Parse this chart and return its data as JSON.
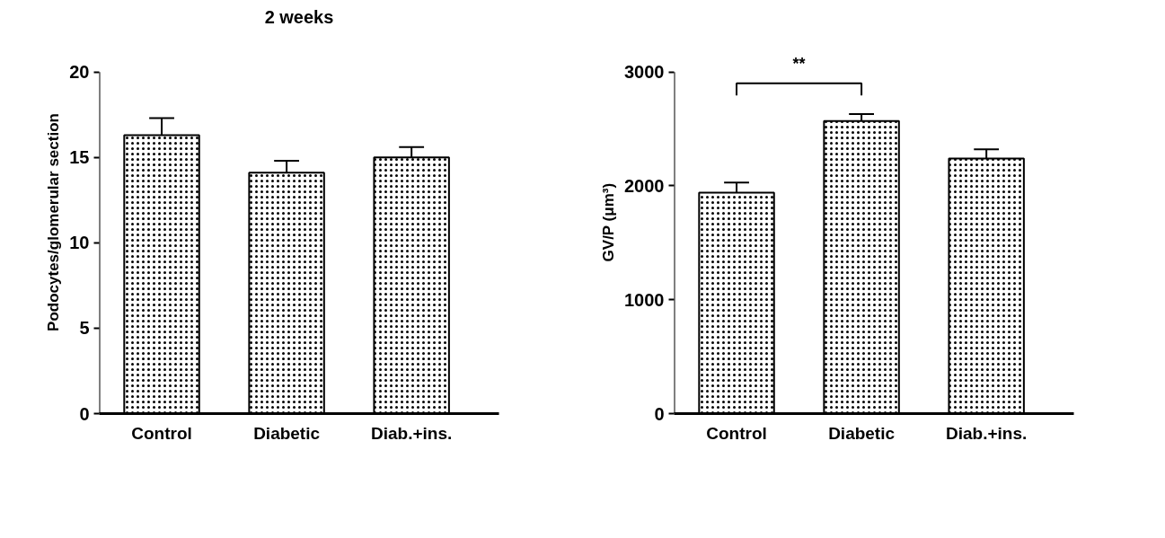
{
  "chart_data": [
    {
      "type": "bar",
      "title": "2 weeks",
      "ylabel": "Podocytes/glomerular section",
      "categories": [
        "Control",
        "Diabetic",
        "Diab.+ins."
      ],
      "values": [
        16.3,
        14.1,
        15.0
      ],
      "errors": [
        1.0,
        0.7,
        0.6
      ],
      "color": "#ffffff",
      "ylim": [
        0,
        20
      ],
      "yticks": [
        0,
        5,
        10,
        15,
        20
      ],
      "grid": false
    },
    {
      "type": "bar",
      "ylabel": "GV/P (μm³)",
      "categories": [
        "Control",
        "Diabetic",
        "Diab.+ins."
      ],
      "values": [
        1940,
        2570,
        2240
      ],
      "errors": [
        90,
        60,
        80
      ],
      "color": "#ffffff",
      "ylim": [
        0,
        3000
      ],
      "yticks": [
        0,
        1000,
        2000,
        3000
      ],
      "grid": false,
      "annotations": [
        "**"
      ]
    }
  ]
}
